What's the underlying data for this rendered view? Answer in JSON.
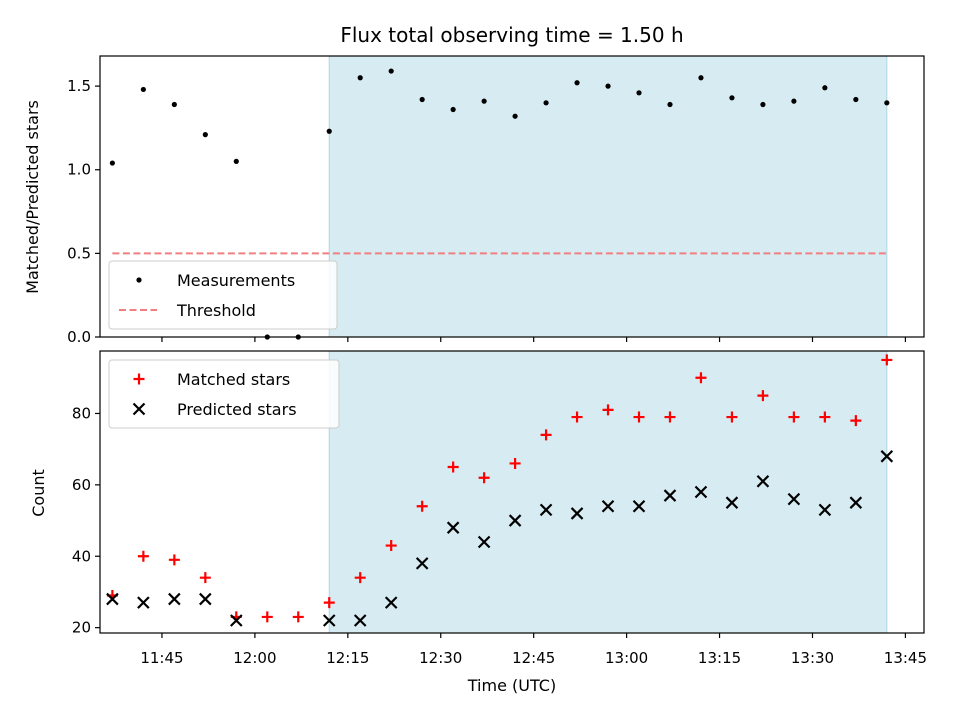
{
  "chart_data": {
    "title": "Flux total observing time = 1.50 h",
    "xlabel": "Time (UTC)",
    "x_tick_labels": [
      "11:45",
      "12:00",
      "12:15",
      "12:30",
      "12:45",
      "13:00",
      "13:15",
      "13:30",
      "13:45"
    ],
    "x_range": [
      "11:35",
      "13:48"
    ],
    "shaded_interval": [
      "12:12",
      "13:42"
    ],
    "colors": {
      "measurements": "#000000",
      "threshold": "#f08080",
      "matched": "#ff0000",
      "predicted": "#000000",
      "shade": "#add8e6"
    },
    "panels": [
      {
        "type": "scatter",
        "ylabel": "Matched/Predicted stars",
        "ylim": [
          0,
          1.68
        ],
        "yticks": [
          0.0,
          0.5,
          1.0,
          1.5
        ],
        "ytick_labels": [
          "0.0",
          "0.5",
          "1.0",
          "1.5"
        ],
        "legend": "lower-left",
        "series": [
          {
            "name": "Measurements",
            "marker": "dot",
            "points": [
              [
                "11:37",
                1.04
              ],
              [
                "11:42",
                1.48
              ],
              [
                "11:47",
                1.39
              ],
              [
                "11:52",
                1.21
              ],
              [
                "11:57",
                1.05
              ],
              [
                "12:02",
                0.0
              ],
              [
                "12:07",
                0.0
              ],
              [
                "12:12",
                1.23
              ],
              [
                "12:17",
                1.55
              ],
              [
                "12:22",
                1.59
              ],
              [
                "12:27",
                1.42
              ],
              [
                "12:32",
                1.36
              ],
              [
                "12:37",
                1.41
              ],
              [
                "12:42",
                1.32
              ],
              [
                "12:47",
                1.4
              ],
              [
                "12:52",
                1.52
              ],
              [
                "12:57",
                1.5
              ],
              [
                "13:02",
                1.46
              ],
              [
                "13:07",
                1.39
              ],
              [
                "13:12",
                1.55
              ],
              [
                "13:17",
                1.43
              ],
              [
                "13:22",
                1.39
              ],
              [
                "13:27",
                1.41
              ],
              [
                "13:32",
                1.49
              ],
              [
                "13:37",
                1.42
              ],
              [
                "13:42",
                1.4
              ]
            ]
          },
          {
            "name": "Threshold",
            "marker": "dashed-line",
            "line": {
              "x": [
                "11:37",
                "13:42"
              ],
              "y": 0.5
            }
          }
        ]
      },
      {
        "type": "scatter",
        "ylabel": "Count",
        "ylim": [
          18.5,
          97.5
        ],
        "yticks": [
          20,
          40,
          60,
          80
        ],
        "ytick_labels": [
          "20",
          "40",
          "60",
          "80"
        ],
        "legend": "upper-left",
        "series": [
          {
            "name": "Matched stars",
            "marker": "plus",
            "points": [
              [
                "11:37",
                29
              ],
              [
                "11:42",
                40
              ],
              [
                "11:47",
                39
              ],
              [
                "11:52",
                34
              ],
              [
                "11:57",
                23
              ],
              [
                "12:02",
                23
              ],
              [
                "12:07",
                23
              ],
              [
                "12:12",
                27
              ],
              [
                "12:17",
                34
              ],
              [
                "12:22",
                43
              ],
              [
                "12:27",
                54
              ],
              [
                "12:32",
                65
              ],
              [
                "12:37",
                62
              ],
              [
                "12:42",
                66
              ],
              [
                "12:47",
                74
              ],
              [
                "12:52",
                79
              ],
              [
                "12:57",
                81
              ],
              [
                "13:02",
                79
              ],
              [
                "13:07",
                79
              ],
              [
                "13:12",
                90
              ],
              [
                "13:17",
                79
              ],
              [
                "13:22",
                85
              ],
              [
                "13:27",
                79
              ],
              [
                "13:32",
                79
              ],
              [
                "13:37",
                78
              ],
              [
                "13:42",
                95
              ]
            ]
          },
          {
            "name": "Predicted stars",
            "marker": "x",
            "points": [
              [
                "11:37",
                28
              ],
              [
                "11:42",
                27
              ],
              [
                "11:47",
                28
              ],
              [
                "11:52",
                28
              ],
              [
                "11:57",
                22
              ],
              [
                "12:12",
                22
              ],
              [
                "12:17",
                22
              ],
              [
                "12:22",
                27
              ],
              [
                "12:27",
                38
              ],
              [
                "12:32",
                48
              ],
              [
                "12:37",
                44
              ],
              [
                "12:42",
                50
              ],
              [
                "12:47",
                53
              ],
              [
                "12:52",
                52
              ],
              [
                "12:57",
                54
              ],
              [
                "13:02",
                54
              ],
              [
                "13:07",
                57
              ],
              [
                "13:12",
                58
              ],
              [
                "13:17",
                55
              ],
              [
                "13:22",
                61
              ],
              [
                "13:27",
                56
              ],
              [
                "13:32",
                53
              ],
              [
                "13:37",
                55
              ],
              [
                "13:42",
                68
              ]
            ]
          }
        ]
      }
    ]
  }
}
